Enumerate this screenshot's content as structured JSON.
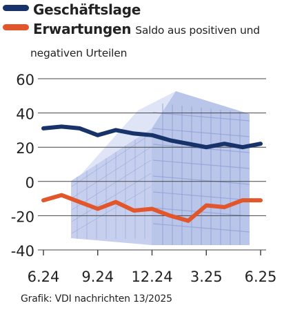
{
  "chart_data": {
    "type": "line",
    "x_ticks": [
      "6.24",
      "9.24",
      "12.24",
      "3.25",
      "6.25"
    ],
    "ylim": [
      -40,
      60
    ],
    "y_ticks": [
      60,
      40,
      20,
      0,
      -20,
      -40
    ],
    "grid": true,
    "legend_position": "top-left",
    "note": "Saldo aus positiven und negativen Urteilen",
    "note_line2": "negativen Urteilen",
    "series": [
      {
        "name": "Geschäftslage",
        "color": "#17336a",
        "values": [
          31,
          32,
          31,
          27,
          30,
          28,
          27,
          24,
          22,
          20,
          22,
          20,
          22
        ]
      },
      {
        "name": "Erwartungen",
        "color": "#e2562b",
        "values": [
          -11,
          -8,
          -12,
          -16,
          -12,
          -17,
          -16,
          -20,
          -23,
          -14,
          -15,
          -11,
          -11
        ]
      }
    ]
  },
  "legend": {
    "series1_name": "Geschäftslage",
    "series2_name": "Erwartungen",
    "note_line1": "Saldo aus positiven und",
    "note_line2": "negativen Urteilen"
  },
  "source": "Grafik: VDI nachrichten 13/2025"
}
